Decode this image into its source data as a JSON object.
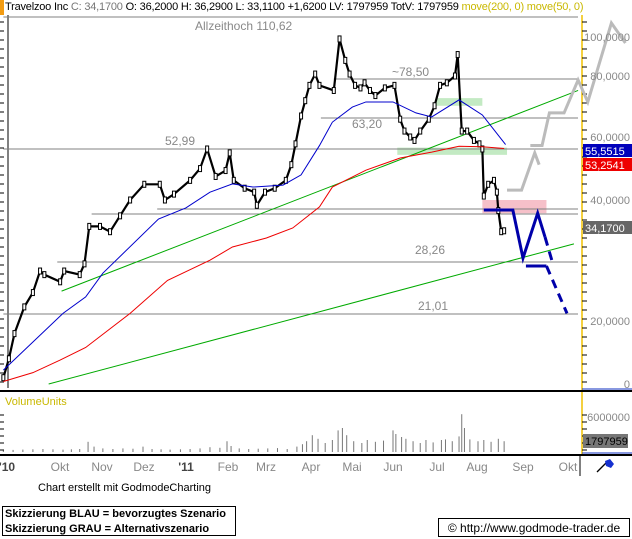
{
  "header": {
    "symbol": "Travelzoo Inc",
    "close": "C: 34,1700",
    "ohlc": "O: 36,2000 H: 36,2900 L: 33,1100 +1,6200 LV: 1797959 TotV: 1797959",
    "indicators": "move(200, 0) move(50, 0)"
  },
  "footer": {
    "credit": "Chart erstellt mit GodmodeCharting",
    "legend_blue": "Skizzierung BLAU = bevorzugtes Szenario",
    "legend_gray": "Skizzierung GRAU = Alternativszenario",
    "copyright": "© http://www.godmode-trader.de"
  },
  "tools": {
    "pen_icon": "pen-icon"
  },
  "colors": {
    "price": "#000000",
    "ma50": "#0000cc",
    "ma200": "#ee0000",
    "trend": "#00aa00",
    "level": "#808080",
    "scenario_blue": "#0000aa",
    "scenario_gray": "#bbbbbb",
    "support_zone": "#b8e6b8",
    "resistance_zone": "#f5b5bf",
    "axis": "#f0c000",
    "volume_label": "#c9b800"
  },
  "chart_data": [
    {
      "type": "line",
      "title": "",
      "ylabel": "",
      "y_scale": "log-like",
      "y_ticks": [
        "100,0000",
        "80,0000",
        "60,0000",
        "40,0000",
        "20,0000",
        "0"
      ],
      "x_ticks": [
        "'10",
        "Okt",
        "Nov",
        "Dez",
        "'11",
        "Feb",
        "Mrz",
        "Apr",
        "Mai",
        "Jun",
        "Jul",
        "Aug",
        "Sep",
        "Okt"
      ],
      "grid": false,
      "value_labels": {
        "last": "34,1700",
        "ma50": "55,5515",
        "ma200": "53,2541"
      },
      "levels": [
        {
          "price": 110.62,
          "label": "Allzeithoch 110,62",
          "from": "2010-08-20"
        },
        {
          "price": 78.5,
          "label": "~78,50",
          "from": "2011-04-19"
        },
        {
          "price": 63.2,
          "label": "63,20",
          "from": "2011-04-10"
        },
        {
          "price": 52.99,
          "label": "52,99",
          "from": "2010-08-20"
        },
        {
          "price": 38.3,
          "label": "",
          "from": "2010-12-12"
        },
        {
          "price": 37.35,
          "label": "",
          "from": "2010-10-25"
        },
        {
          "price": 28.26,
          "label": "28,26",
          "from": "2010-09-27"
        },
        {
          "price": 21.01,
          "label": "21,01",
          "from": "2010-08-20"
        }
      ],
      "series": [
        {
          "role": "price",
          "points": [
            [
              "2010-08-20",
              15.5
            ],
            [
              "2010-08-24",
              17
            ],
            [
              "2010-08-28",
              19
            ],
            [
              "2010-09-04",
              22
            ],
            [
              "2010-09-10",
              24
            ],
            [
              "2010-09-15",
              27
            ],
            [
              "2010-09-18",
              26.5
            ],
            [
              "2010-09-29",
              25.5
            ],
            [
              "2010-10-02",
              27
            ],
            [
              "2010-10-15",
              26.5
            ],
            [
              "2010-10-19",
              28
            ],
            [
              "2010-10-23",
              35
            ],
            [
              "2010-11-01",
              35
            ],
            [
              "2010-11-08",
              34
            ],
            [
              "2010-11-15",
              37
            ],
            [
              "2010-11-22",
              40
            ],
            [
              "2010-12-02",
              44
            ],
            [
              "2010-12-14",
              44
            ],
            [
              "2010-12-18",
              40
            ],
            [
              "2010-12-25",
              41.5
            ],
            [
              "2011-01-06",
              45
            ],
            [
              "2011-01-13",
              48
            ],
            [
              "2011-01-18",
              53
            ],
            [
              "2011-01-24",
              46
            ],
            [
              "2011-01-31",
              47.5
            ],
            [
              "2011-02-03",
              52
            ],
            [
              "2011-02-06",
              45
            ],
            [
              "2011-02-14",
              43
            ],
            [
              "2011-02-21",
              42
            ],
            [
              "2011-02-23",
              39
            ],
            [
              "2011-03-01",
              42
            ],
            [
              "2011-03-08",
              43
            ],
            [
              "2011-03-16",
              45
            ],
            [
              "2011-03-20",
              49
            ],
            [
              "2011-03-23",
              56
            ],
            [
              "2011-03-27",
              64
            ],
            [
              "2011-03-30",
              70
            ],
            [
              "2011-04-02",
              76
            ],
            [
              "2011-04-06",
              81
            ],
            [
              "2011-04-09",
              76
            ],
            [
              "2011-04-19",
              74
            ],
            [
              "2011-04-23",
              99
            ],
            [
              "2011-04-27",
              88
            ],
            [
              "2011-04-30",
              81
            ],
            [
              "2011-05-04",
              76
            ],
            [
              "2011-05-08",
              75
            ],
            [
              "2011-05-11",
              77
            ],
            [
              "2011-05-15",
              74
            ],
            [
              "2011-05-19",
              72
            ],
            [
              "2011-05-26",
              75
            ],
            [
              "2011-06-02",
              76
            ],
            [
              "2011-06-06",
              63
            ],
            [
              "2011-06-09",
              61
            ],
            [
              "2011-06-13",
              60
            ],
            [
              "2011-06-16",
              58
            ],
            [
              "2011-06-20",
              61
            ],
            [
              "2011-06-26",
              63
            ],
            [
              "2011-06-30",
              68
            ],
            [
              "2011-07-04",
              76
            ],
            [
              "2011-07-09",
              77
            ],
            [
              "2011-07-15",
              80
            ],
            [
              "2011-07-17",
              91
            ],
            [
              "2011-07-20",
              61
            ],
            [
              "2011-07-24",
              61
            ],
            [
              "2011-07-29",
              58
            ],
            [
              "2011-08-02",
              56
            ],
            [
              "2011-08-04",
              53
            ],
            [
              "2011-08-05",
              41
            ],
            [
              "2011-08-08",
              44
            ],
            [
              "2011-08-12",
              45
            ],
            [
              "2011-08-14",
              42
            ],
            [
              "2011-08-15",
              38
            ],
            [
              "2011-08-17",
              34
            ],
            [
              "2011-08-19",
              34.17
            ]
          ]
        },
        {
          "name": "move(50, 0)",
          "role": "ma50",
          "points": [
            [
              "2010-08-20",
              16.1
            ],
            [
              "2010-10-01",
              21.1
            ],
            [
              "2010-10-20",
              23.4
            ],
            [
              "2010-11-03",
              26.7
            ],
            [
              "2010-12-13",
              36.4
            ],
            [
              "2011-01-03",
              38.5
            ],
            [
              "2011-01-20",
              42.0
            ],
            [
              "2011-02-05",
              44.1
            ],
            [
              "2011-02-20",
              43.3
            ],
            [
              "2011-03-14",
              43.8
            ],
            [
              "2011-03-27",
              46.4
            ],
            [
              "2011-04-09",
              55.0
            ],
            [
              "2011-04-18",
              62.5
            ],
            [
              "2011-05-02",
              67.5
            ],
            [
              "2011-05-12",
              69.5
            ],
            [
              "2011-06-01",
              69.5
            ],
            [
              "2011-06-17",
              65.2
            ],
            [
              "2011-06-28",
              63.6
            ],
            [
              "2011-07-18",
              70.3
            ],
            [
              "2011-08-04",
              64.4
            ],
            [
              "2011-08-20",
              55.55
            ]
          ]
        },
        {
          "name": "move(200, 0)",
          "role": "ma200",
          "points": [
            [
              "2010-08-20",
              15.2
            ],
            [
              "2010-09-10",
              15.9
            ],
            [
              "2010-09-29",
              16.9
            ],
            [
              "2010-10-20",
              17.9
            ],
            [
              "2010-11-22",
              21.1
            ],
            [
              "2010-12-20",
              25.7
            ],
            [
              "2011-01-20",
              28.6
            ],
            [
              "2011-02-05",
              31.1
            ],
            [
              "2011-03-02",
              32.8
            ],
            [
              "2011-03-21",
              34.7
            ],
            [
              "2011-04-09",
              38.7
            ],
            [
              "2011-04-18",
              43.3
            ],
            [
              "2011-05-12",
              47.6
            ],
            [
              "2011-06-06",
              50.7
            ],
            [
              "2011-06-28",
              52.2
            ],
            [
              "2011-07-18",
              54.6
            ],
            [
              "2011-08-04",
              54.3
            ],
            [
              "2011-08-19",
              53.25
            ]
          ]
        }
      ],
      "trendlines": [
        {
          "from": [
            "2010-09-30",
            24.2
          ],
          "to": [
            "2011-10-09",
            74.0
          ]
        },
        {
          "from": [
            "2010-09-21",
            15.0
          ],
          "to": [
            "2011-10-06",
            31.7
          ]
        }
      ],
      "zones": [
        {
          "kind": "support",
          "from": [
            "2011-07-01",
            71.0
          ],
          "to": [
            "2011-08-04",
            68.0
          ]
        },
        {
          "kind": "support",
          "from": [
            "2011-06-04",
            53.8
          ],
          "to": [
            "2011-08-21",
            51.5
          ]
        },
        {
          "kind": "resistance",
          "from": [
            "2011-08-04",
            40.0
          ],
          "to": [
            "2011-09-17",
            37.5
          ]
        }
      ],
      "scenarios": [
        {
          "color": "blue",
          "style": "solid",
          "points": [
            [
              "2011-08-05",
              38.1
            ],
            [
              "2011-08-25",
              38.1
            ],
            [
              "2011-09-01",
              29.0
            ],
            [
              "2011-09-11",
              37.5
            ],
            [
              "2011-09-16",
              33.0
            ]
          ]
        },
        {
          "color": "blue",
          "style": "dashed",
          "points": [
            [
              "2011-09-16",
              33.0
            ],
            [
              "2011-09-21",
              28.26
            ]
          ]
        },
        {
          "color": "blue",
          "style": "solid",
          "points": [
            [
              "2011-09-03",
              27.7
            ],
            [
              "2011-09-17",
              27.7
            ]
          ]
        },
        {
          "color": "blue",
          "style": "dashed",
          "points": [
            [
              "2011-09-17",
              27.7
            ],
            [
              "2011-10-01",
              21.1
            ]
          ]
        },
        {
          "color": "gray",
          "style": "solid",
          "points": [
            [
              "2011-08-21",
              42.5
            ],
            [
              "2011-08-31",
              42.5
            ],
            [
              "2011-09-09",
              52.0
            ],
            [
              "2011-09-12",
              49.0
            ]
          ]
        },
        {
          "color": "gray",
          "style": "solid",
          "points": [
            [
              "2011-09-06",
              55.0
            ],
            [
              "2011-09-14",
              55.0
            ],
            [
              "2011-09-19",
              65.2
            ],
            [
              "2011-09-29",
              65.2
            ],
            [
              "2011-10-09",
              78.1
            ],
            [
              "2011-10-16",
              69.5
            ],
            [
              "2011-11-02",
              107.4
            ],
            [
              "2011-11-12",
              96.9
            ]
          ]
        }
      ]
    },
    {
      "type": "bar",
      "title": "VolumeUnits",
      "y_ticks": [
        "6000000"
      ],
      "last_label": "1797959",
      "points": [
        [
          "2010-08-20",
          300000
        ],
        [
          "2010-08-27",
          350000
        ],
        [
          "2010-09-03",
          400000
        ],
        [
          "2010-09-10",
          450000
        ],
        [
          "2010-09-17",
          500000
        ],
        [
          "2010-09-24",
          450000
        ],
        [
          "2010-10-01",
          400000
        ],
        [
          "2010-10-08",
          450000
        ],
        [
          "2010-10-15",
          500000
        ],
        [
          "2010-10-22",
          1700000
        ],
        [
          "2010-10-27",
          900000
        ],
        [
          "2010-11-03",
          600000
        ],
        [
          "2010-11-10",
          500000
        ],
        [
          "2010-11-17",
          600000
        ],
        [
          "2010-11-24",
          550000
        ],
        [
          "2010-12-01",
          900000
        ],
        [
          "2010-12-08",
          500000
        ],
        [
          "2010-12-15",
          450000
        ],
        [
          "2010-12-22",
          400000
        ],
        [
          "2010-12-30",
          450000
        ],
        [
          "2011-01-06",
          500000
        ],
        [
          "2011-01-13",
          600000
        ],
        [
          "2011-01-20",
          800000
        ],
        [
          "2011-01-27",
          700000
        ],
        [
          "2011-02-01",
          1800000
        ],
        [
          "2011-02-04",
          1000000
        ],
        [
          "2011-02-10",
          600000
        ],
        [
          "2011-02-17",
          500000
        ],
        [
          "2011-02-24",
          550000
        ],
        [
          "2011-03-03",
          600000
        ],
        [
          "2011-03-10",
          650000
        ],
        [
          "2011-03-17",
          500000
        ],
        [
          "2011-03-24",
          900000
        ],
        [
          "2011-03-28",
          1300000
        ],
        [
          "2011-03-31",
          1800000
        ],
        [
          "2011-04-04",
          2800000
        ],
        [
          "2011-04-08",
          2200000
        ],
        [
          "2011-04-13",
          1500000
        ],
        [
          "2011-04-18",
          2000000
        ],
        [
          "2011-04-22",
          3600000
        ],
        [
          "2011-04-25",
          4000000
        ],
        [
          "2011-04-28",
          2800000
        ],
        [
          "2011-05-03",
          1800000
        ],
        [
          "2011-05-09",
          1500000
        ],
        [
          "2011-05-13",
          2000000
        ],
        [
          "2011-05-19",
          1700000
        ],
        [
          "2011-05-25",
          1900000
        ],
        [
          "2011-06-01",
          3600000
        ],
        [
          "2011-06-03",
          3000000
        ],
        [
          "2011-06-07",
          2500000
        ],
        [
          "2011-06-10",
          2200000
        ],
        [
          "2011-06-15",
          1800000
        ],
        [
          "2011-06-20",
          1500000
        ],
        [
          "2011-06-24",
          2000000
        ],
        [
          "2011-06-29",
          1600000
        ],
        [
          "2011-07-05",
          2000000
        ],
        [
          "2011-07-08",
          2100000
        ],
        [
          "2011-07-13",
          1800000
        ],
        [
          "2011-07-18",
          2600000
        ],
        [
          "2011-07-20",
          6300000
        ],
        [
          "2011-07-22",
          4000000
        ],
        [
          "2011-07-26",
          2100000
        ],
        [
          "2011-08-01",
          1800000
        ],
        [
          "2011-08-05",
          2000000
        ],
        [
          "2011-08-10",
          1700000
        ],
        [
          "2011-08-15",
          2200000
        ],
        [
          "2011-08-19",
          1797959
        ]
      ]
    }
  ]
}
